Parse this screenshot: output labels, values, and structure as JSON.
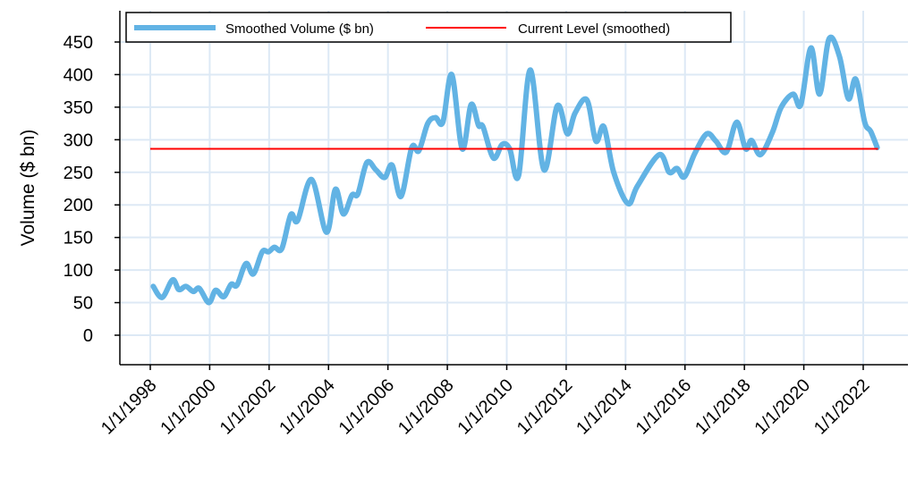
{
  "chart_data": {
    "type": "line",
    "title": "",
    "xlabel": "",
    "ylabel": "Volume ($ bn)",
    "ylim": [
      -45,
      498
    ],
    "xlim": [
      1997.0,
      2023.5
    ],
    "grid": true,
    "legend_position": "top",
    "yticks": [
      0,
      50,
      100,
      150,
      200,
      250,
      300,
      350,
      400,
      450
    ],
    "xticks": [
      {
        "year": 1998,
        "label": "1/1/1998"
      },
      {
        "year": 2000,
        "label": "1/1/2000"
      },
      {
        "year": 2002,
        "label": "1/1/2002"
      },
      {
        "year": 2004,
        "label": "1/1/2004"
      },
      {
        "year": 2006,
        "label": "1/1/2006"
      },
      {
        "year": 2008,
        "label": "1/1/2008"
      },
      {
        "year": 2010,
        "label": "1/1/2010"
      },
      {
        "year": 2012,
        "label": "1/1/2012"
      },
      {
        "year": 2014,
        "label": "1/1/2014"
      },
      {
        "year": 2016,
        "label": "1/1/2016"
      },
      {
        "year": 2018,
        "label": "1/1/2018"
      },
      {
        "year": 2020,
        "label": "1/1/2020"
      },
      {
        "year": 2022,
        "label": "1/1/2022"
      }
    ],
    "series": [
      {
        "name": "Smoothed Volume ($ bn)",
        "color": "#62b3e4",
        "x": [
          1998.1,
          1998.4,
          1998.75,
          1998.96,
          1999.2,
          1999.45,
          1999.65,
          1999.97,
          2000.2,
          2000.47,
          2000.72,
          2000.92,
          2001.22,
          2001.47,
          2001.77,
          2001.98,
          2002.18,
          2002.43,
          2002.73,
          2002.96,
          2003.43,
          2003.93,
          2004.23,
          2004.5,
          2004.79,
          2004.99,
          2005.29,
          2005.59,
          2005.89,
          2006.14,
          2006.44,
          2006.8,
          2007.04,
          2007.34,
          2007.6,
          2007.85,
          2008.15,
          2008.5,
          2008.8,
          2009.05,
          2009.2,
          2009.55,
          2009.85,
          2010.1,
          2010.4,
          2010.79,
          2011.25,
          2011.7,
          2012.04,
          2012.3,
          2012.7,
          2013.0,
          2013.27,
          2013.6,
          2014.08,
          2014.4,
          2015.13,
          2015.47,
          2015.73,
          2015.98,
          2016.33,
          2016.73,
          2017.04,
          2017.39,
          2017.74,
          2018.04,
          2018.24,
          2018.54,
          2018.94,
          2019.24,
          2019.64,
          2019.9,
          2020.24,
          2020.53,
          2020.85,
          2021.2,
          2021.5,
          2021.75,
          2022.05,
          2022.25,
          2022.47
        ],
        "values": [
          75,
          58,
          85,
          70,
          75,
          67,
          72,
          50,
          69,
          59,
          78,
          77,
          110,
          94,
          128,
          128,
          135,
          133,
          185,
          176,
          239,
          158,
          224,
          186,
          215,
          217,
          265,
          254,
          242,
          261,
          213,
          288,
          283,
          325,
          334,
          327,
          400,
          286,
          354,
          322,
          320,
          272,
          293,
          286,
          245,
          407,
          254,
          352,
          309,
          341,
          361,
          298,
          320,
          250,
          202,
          229,
          277,
          250,
          256,
          243,
          279,
          309,
          298,
          281,
          327,
          286,
          299,
          277,
          311,
          350,
          370,
          354,
          441,
          370,
          455,
          428,
          363,
          393,
          327,
          313,
          288
        ]
      },
      {
        "name": "Current Level (smoothed)",
        "color": "#ff0000",
        "x": [
          1998.0,
          2022.5
        ],
        "values": [
          286,
          286
        ]
      }
    ]
  }
}
